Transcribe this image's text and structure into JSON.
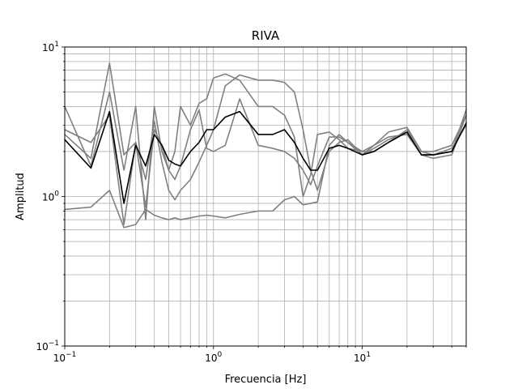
{
  "chart_data": {
    "type": "line",
    "title": "RIVA",
    "xlabel": "Frecuencia [Hz]",
    "ylabel": "Amplitud",
    "x_scale": "log",
    "y_scale": "log",
    "xlim": [
      0.1,
      50
    ],
    "ylim": [
      0.1,
      10
    ],
    "grid": "major-and-minor",
    "x_ticks": [
      {
        "value": 0.1,
        "base": "10",
        "exp": "−1"
      },
      {
        "value": 1,
        "base": "10",
        "exp": "0"
      },
      {
        "value": 10,
        "base": "10",
        "exp": "1"
      }
    ],
    "y_ticks": [
      {
        "value": 0.1,
        "base": "10",
        "exp": "−1"
      },
      {
        "value": 1,
        "base": "10",
        "exp": "0"
      },
      {
        "value": 10,
        "base": "10",
        "exp": "1"
      }
    ],
    "colors": {
      "mean": "#000000",
      "component": "#808080",
      "grid": "#b0b0b0"
    },
    "series": [
      {
        "role": "component",
        "color": "#808080",
        "x": [
          0.1,
          0.15,
          0.2,
          0.25,
          0.3,
          0.35,
          0.4,
          0.45,
          0.5,
          0.55,
          0.6,
          0.7,
          0.8,
          0.9,
          1.0,
          1.2,
          1.5,
          2.0,
          2.5,
          3.0,
          3.5,
          4.0,
          4.5,
          5.0,
          6,
          7,
          8,
          10,
          12,
          15,
          20,
          25,
          30,
          40,
          50
        ],
        "y": [
          2.6,
          1.8,
          7.8,
          1.9,
          2.3,
          1.3,
          3.2,
          1.7,
          1.1,
          0.95,
          1.1,
          1.3,
          1.7,
          2.2,
          2.8,
          5.5,
          6.5,
          6.0,
          6.0,
          5.8,
          5.0,
          2.8,
          1.5,
          1.1,
          2.0,
          2.3,
          2.4,
          1.9,
          2.2,
          2.5,
          2.6,
          1.9,
          1.9,
          2.1,
          3.0
        ]
      },
      {
        "role": "component",
        "color": "#808080",
        "x": [
          0.1,
          0.15,
          0.2,
          0.25,
          0.3,
          0.35,
          0.4,
          0.45,
          0.5,
          0.55,
          0.6,
          0.7,
          0.8,
          0.9,
          1.0,
          1.2,
          1.5,
          2.0,
          2.5,
          3.0,
          3.5,
          4.0,
          4.5,
          5.0,
          6,
          7,
          8,
          10,
          12,
          15,
          20,
          25,
          30,
          40,
          50
        ],
        "y": [
          4.0,
          1.6,
          5.0,
          1.5,
          4.0,
          0.7,
          4.0,
          2.0,
          1.5,
          2.0,
          4.0,
          3.0,
          4.2,
          4.5,
          6.2,
          6.6,
          6.0,
          4.0,
          4.0,
          3.5,
          2.5,
          1.0,
          1.4,
          2.6,
          2.7,
          2.4,
          2.1,
          2.0,
          2.2,
          2.7,
          2.9,
          2.0,
          2.0,
          2.2,
          3.5
        ]
      },
      {
        "role": "component",
        "color": "#808080",
        "x": [
          0.1,
          0.15,
          0.2,
          0.25,
          0.3,
          0.35,
          0.4,
          0.45,
          0.5,
          0.55,
          0.6,
          0.7,
          0.8,
          0.9,
          1.0,
          1.2,
          1.5,
          2.0,
          2.5,
          3.0,
          3.5,
          4.0,
          4.5,
          5.0,
          6,
          7,
          8,
          10,
          12,
          15,
          20,
          25,
          30,
          40,
          50
        ],
        "y": [
          2.8,
          2.3,
          3.5,
          0.65,
          2.3,
          0.85,
          2.8,
          2.2,
          1.5,
          1.3,
          1.6,
          2.8,
          3.8,
          2.1,
          2.0,
          2.2,
          4.5,
          2.2,
          2.1,
          2.0,
          1.8,
          1.5,
          1.2,
          1.6,
          2.5,
          2.5,
          2.3,
          2.0,
          2.0,
          2.3,
          2.8,
          2.0,
          1.9,
          2.0,
          3.8
        ]
      },
      {
        "role": "component",
        "color": "#808080",
        "x": [
          0.1,
          0.15,
          0.2,
          0.25,
          0.3,
          0.35,
          0.4,
          0.45,
          0.5,
          0.55,
          0.6,
          0.7,
          0.8,
          0.9,
          1.0,
          1.2,
          1.5,
          2.0,
          2.5,
          3.0,
          3.5,
          4.0,
          4.5,
          5.0,
          6,
          7,
          8,
          10,
          12,
          15,
          20,
          25,
          30,
          40,
          50
        ],
        "y": [
          0.82,
          0.85,
          1.1,
          0.62,
          0.65,
          0.82,
          0.75,
          0.72,
          0.7,
          0.72,
          0.7,
          0.72,
          0.74,
          0.75,
          0.74,
          0.72,
          0.76,
          0.8,
          0.8,
          0.95,
          1.0,
          0.88,
          0.9,
          0.92,
          2.2,
          2.6,
          2.3,
          1.9,
          2.1,
          2.4,
          2.7,
          1.9,
          1.8,
          1.9,
          3.5
        ]
      },
      {
        "role": "mean",
        "color": "#000000",
        "x": [
          0.1,
          0.15,
          0.2,
          0.25,
          0.3,
          0.35,
          0.4,
          0.45,
          0.5,
          0.55,
          0.6,
          0.7,
          0.8,
          0.9,
          1.0,
          1.2,
          1.5,
          2.0,
          2.5,
          3.0,
          3.5,
          4.0,
          4.5,
          5.0,
          6,
          7,
          8,
          10,
          12,
          15,
          20,
          25,
          30,
          40,
          50
        ],
        "y": [
          2.4,
          1.55,
          3.7,
          0.9,
          2.2,
          1.6,
          2.6,
          2.2,
          1.75,
          1.65,
          1.6,
          2.0,
          2.3,
          2.8,
          2.8,
          3.4,
          3.7,
          2.6,
          2.6,
          2.8,
          2.3,
          1.8,
          1.5,
          1.5,
          2.1,
          2.2,
          2.1,
          1.9,
          2.0,
          2.3,
          2.7,
          1.9,
          1.9,
          2.0,
          3.1
        ]
      }
    ]
  }
}
